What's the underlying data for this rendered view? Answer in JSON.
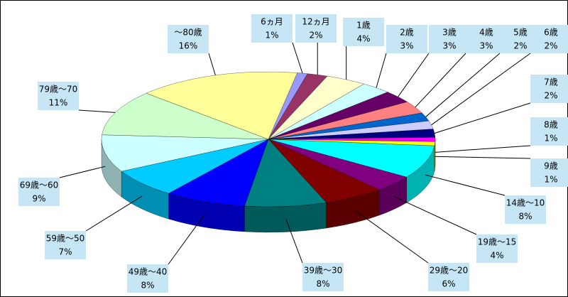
{
  "chart_data": {
    "type": "pie",
    "categories": [
      "6ヵ月",
      "12ヵ月",
      "1歳",
      "2歳",
      "3歳",
      "4歳",
      "5歳",
      "6歳",
      "7歳",
      "8歳",
      "9歳",
      "14歳～10",
      "19歳～15",
      "29歳～20",
      "39歳～30",
      "49歳～40",
      "59歳～50",
      "69歳～60",
      "79歳～70",
      "～80歳"
    ],
    "values": [
      1,
      2,
      4,
      3,
      3,
      3,
      2,
      2,
      2,
      1,
      1,
      8,
      4,
      6,
      8,
      8,
      7,
      9,
      11,
      16
    ],
    "value_labels": [
      "1%",
      "2%",
      "4%",
      "3%",
      "3%",
      "3%",
      "2%",
      "2%",
      "2%",
      "1%",
      "1%",
      "8%",
      "4%",
      "6%",
      "8%",
      "8%",
      "7%",
      "9%",
      "11%",
      "16%"
    ],
    "colors": [
      "#9999ff",
      "#993366",
      "#ffffcc",
      "#ccffff",
      "#660066",
      "#ff8080",
      "#0066cc",
      "#ccccff",
      "#000080",
      "#ff00ff",
      "#ffff00",
      "#00ffff",
      "#800080",
      "#800000",
      "#008080",
      "#0000ff",
      "#00ccff",
      "#ccffff",
      "#ccffcc",
      "#ffff99"
    ]
  }
}
